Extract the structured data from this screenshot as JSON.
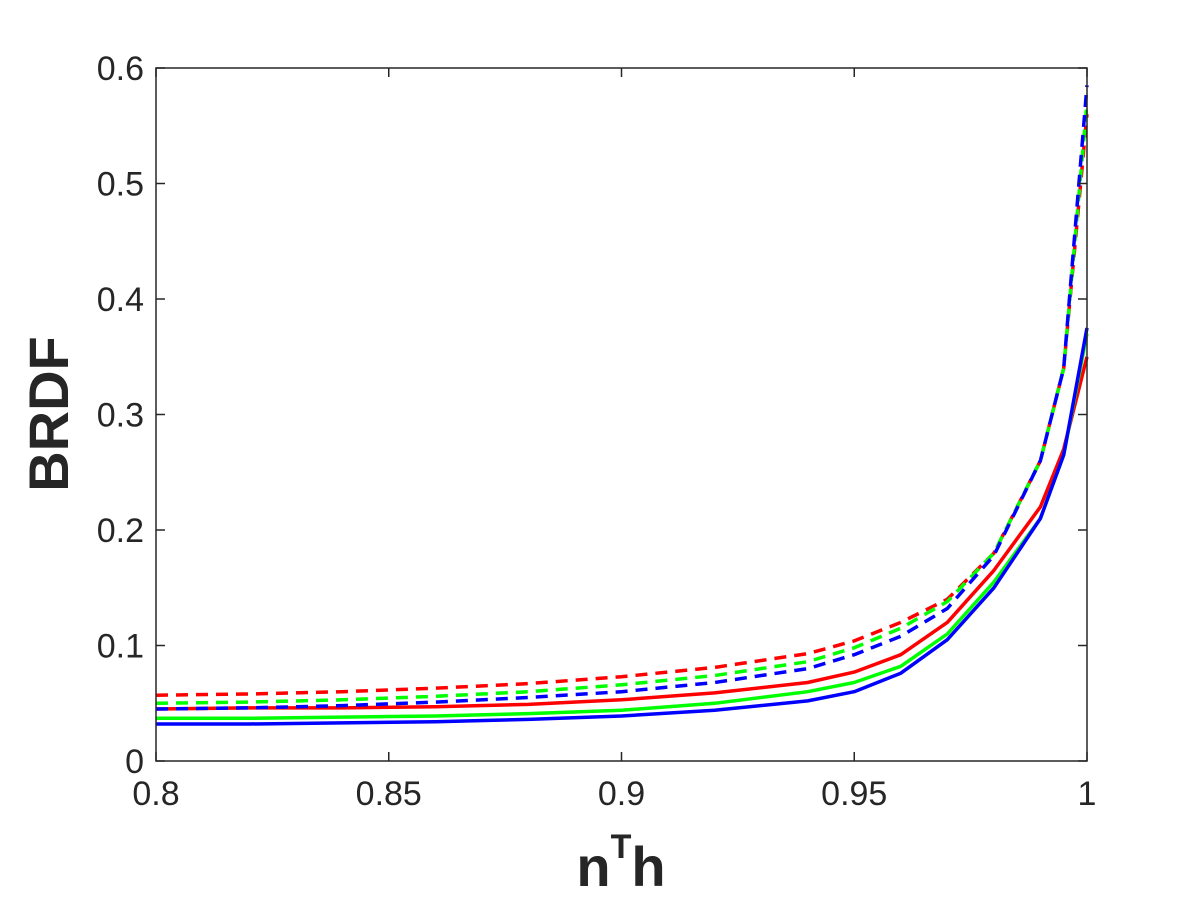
{
  "chart_data": {
    "type": "line",
    "title": "",
    "xlabel": {
      "base": "n",
      "sup": "T",
      "tail": "h"
    },
    "ylabel": "BRDF",
    "xlim": [
      0.8,
      1.0
    ],
    "ylim": [
      0,
      0.6
    ],
    "xticks": [
      0.8,
      0.85,
      0.9,
      0.95,
      1.0
    ],
    "xtick_labels": [
      "0.8",
      "0.85",
      "0.9",
      "0.95",
      "1"
    ],
    "yticks": [
      0,
      0.1,
      0.2,
      0.3,
      0.4,
      0.5,
      0.6
    ],
    "ytick_labels": [
      "0",
      "0.1",
      "0.2",
      "0.3",
      "0.4",
      "0.5",
      "0.6"
    ],
    "grid": false,
    "legend": "none",
    "x": [
      0.8,
      0.82,
      0.84,
      0.86,
      0.88,
      0.9,
      0.92,
      0.94,
      0.95,
      0.96,
      0.97,
      0.98,
      0.99,
      0.995,
      1.0
    ],
    "series": [
      {
        "color": "#ff0000",
        "style": "solid",
        "values": [
          0.045,
          0.046,
          0.046,
          0.047,
          0.049,
          0.053,
          0.059,
          0.068,
          0.077,
          0.092,
          0.12,
          0.165,
          0.22,
          0.27,
          0.35
        ]
      },
      {
        "color": "#00ff00",
        "style": "solid",
        "values": [
          0.037,
          0.037,
          0.038,
          0.039,
          0.041,
          0.044,
          0.05,
          0.06,
          0.068,
          0.082,
          0.11,
          0.155,
          0.21,
          0.265,
          0.37
        ]
      },
      {
        "color": "#0000ff",
        "style": "solid",
        "values": [
          0.032,
          0.032,
          0.033,
          0.034,
          0.036,
          0.039,
          0.044,
          0.052,
          0.06,
          0.076,
          0.105,
          0.15,
          0.21,
          0.265,
          0.375
        ]
      },
      {
        "color": "#ff0000",
        "style": "dashed",
        "values": [
          0.057,
          0.058,
          0.06,
          0.063,
          0.067,
          0.073,
          0.081,
          0.093,
          0.104,
          0.12,
          0.14,
          0.18,
          0.26,
          0.34,
          0.56
        ]
      },
      {
        "color": "#00ff00",
        "style": "dashed",
        "values": [
          0.05,
          0.051,
          0.053,
          0.056,
          0.06,
          0.066,
          0.074,
          0.086,
          0.098,
          0.115,
          0.138,
          0.18,
          0.26,
          0.34,
          0.57
        ]
      },
      {
        "color": "#0000ff",
        "style": "dashed",
        "values": [
          0.045,
          0.046,
          0.048,
          0.051,
          0.055,
          0.06,
          0.068,
          0.08,
          0.092,
          0.108,
          0.132,
          0.178,
          0.26,
          0.34,
          0.585
        ]
      }
    ]
  }
}
